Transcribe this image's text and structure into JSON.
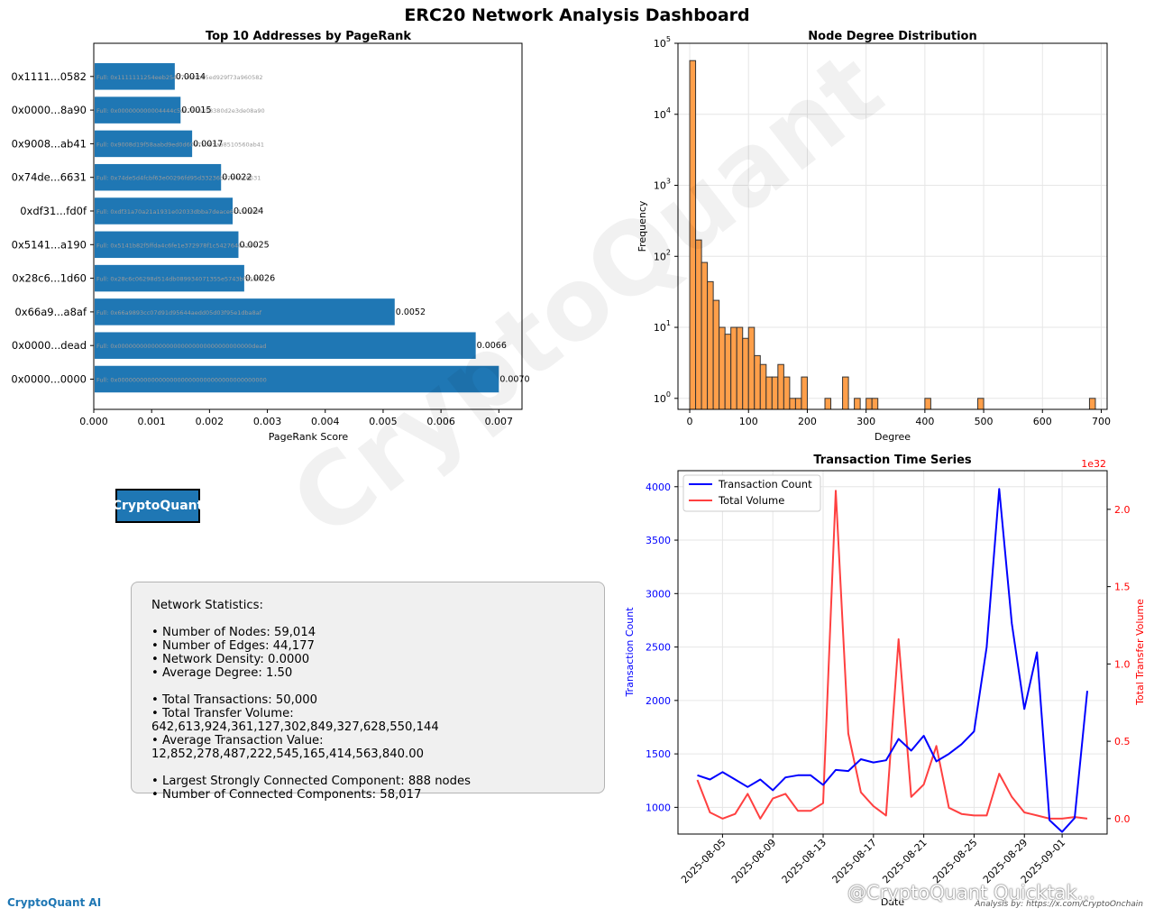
{
  "title": "ERC20 Network Analysis Dashboard",
  "watermark": "CryptoQuant",
  "brand_box": "CryptoQuant",
  "footer_brand": "CryptoQuant AI",
  "footer_credit": "Analysis by: https://x.com/CryptoOnchain",
  "footer_mark": "@CryptoQuant Quicktak...",
  "stats": {
    "heading": "Network Statistics:",
    "lines": [
      "• Number of Nodes: 59,014",
      "• Number of Edges: 44,177",
      "• Network Density: 0.0000",
      "• Average Degree: 1.50",
      "",
      "• Total Transactions: 50,000",
      "• Total Transfer Volume: 642,613,924,361,127,302,849,327,628,550,144",
      "• Average Transaction Value: 12,852,278,487,222,545,165,414,563,840.00",
      "",
      "• Largest Strongly Connected Component: 888 nodes",
      "• Number of Connected Components: 58,017"
    ]
  },
  "chart_data": [
    {
      "type": "bar",
      "orientation": "horizontal",
      "title": "Top 10 Addresses by PageRank",
      "xlabel": "PageRank Score",
      "ylabel": "",
      "xlim": [
        0,
        0.0074
      ],
      "xticks": [
        "0.000",
        "0.001",
        "0.002",
        "0.003",
        "0.004",
        "0.005",
        "0.006",
        "0.007"
      ],
      "bar_color": "#1f77b4",
      "categories": [
        "0x0000...0000",
        "0x0000...dead",
        "0x66a9...a8af",
        "0x28c6...1d60",
        "0x5141...a190",
        "0xdf31...fd0f",
        "0x74de...6631",
        "0x9008...ab41",
        "0x0000...8a90",
        "0x1111...0582"
      ],
      "values": [
        0.007,
        0.0066,
        0.0052,
        0.0026,
        0.0025,
        0.0024,
        0.0022,
        0.0017,
        0.0015,
        0.0014
      ],
      "data_labels": [
        "0.0070",
        "0.0066",
        "0.0052",
        "0.0026",
        "0.0025",
        "0.0024",
        "0.0022",
        "0.0017",
        "0.0015",
        "0.0014"
      ],
      "full_addresses": [
        "Full: 0x0000000000000000000000000000000000000000",
        "Full: 0x000000000000000000000000000000000000dead",
        "Full: 0x66a9893cc07d91d95644aedd05d03f95e1dba8af",
        "Full: 0x28c6c06298d514db089934071355e5743bf21d60",
        "Full: 0x5141b82f5ffda4c6fe1e372978f1c5427640a190",
        "Full: 0xdf31a70a21a1931e02033dbba7deace6c45cfd0f",
        "Full: 0x74de5d4fcbf63e00296fd95d33236b9794016631",
        "Full: 0x9008d19f58aabd9ed0d60971565aa8510560ab41",
        "Full: 0x000000000004444c5dc75cb358380d2e3de08a90",
        "Full: 0x1111111254eeb25477b68fb85ed929f73a960582"
      ]
    },
    {
      "type": "histogram",
      "title": "Node Degree Distribution",
      "xlabel": "Degree",
      "ylabel": "Frequency",
      "yscale": "log",
      "ylim": [
        0.7,
        100000
      ],
      "xlim": [
        -20,
        710
      ],
      "xticks": [
        0,
        100,
        200,
        300,
        400,
        500,
        600,
        700
      ],
      "bar_color": "#ff9f4a",
      "bin_width": 10,
      "bin_starts": [
        0,
        10,
        20,
        30,
        40,
        50,
        60,
        70,
        80,
        90,
        100,
        110,
        120,
        130,
        140,
        150,
        160,
        170,
        180,
        190,
        230,
        260,
        280,
        300,
        310,
        400,
        490,
        680
      ],
      "counts": [
        57000,
        170,
        82,
        44,
        24,
        10,
        8,
        10,
        10,
        7,
        10,
        4,
        3,
        2,
        2,
        3,
        2,
        1,
        1,
        2,
        1,
        2,
        1,
        1,
        1,
        1,
        1,
        1
      ]
    },
    {
      "type": "line",
      "title": "Transaction Time Series",
      "xlabel": "Date",
      "ylabel": "Transaction Count",
      "y2label": "Total Transfer Volume",
      "y2_multiplier": "1e32",
      "x_start": "2025-08-03",
      "ylim": [
        750,
        4150
      ],
      "y2lim": [
        -0.1,
        2.25
      ],
      "yticks": [
        1000,
        1500,
        2000,
        2500,
        3000,
        3500,
        4000
      ],
      "y2ticks": [
        "0.0",
        "0.5",
        "1.0",
        "1.5",
        "2.0"
      ],
      "xticks": [
        "2025-08-05",
        "2025-08-09",
        "2025-08-13",
        "2025-08-17",
        "2025-08-21",
        "2025-08-25",
        "2025-08-29",
        "2025-09-01"
      ],
      "legend_position": "top-left",
      "series": [
        {
          "name": "Transaction Count",
          "color": "#0000ff",
          "axis": "left",
          "values": [
            1300,
            1260,
            1330,
            1260,
            1190,
            1260,
            1160,
            1280,
            1300,
            1300,
            1210,
            1350,
            1340,
            1450,
            1420,
            1440,
            1640,
            1530,
            1670,
            1430,
            1500,
            1590,
            1710,
            2500,
            3980,
            2720,
            1920,
            2450,
            880,
            770,
            900,
            2090
          ]
        },
        {
          "name": "Total Volume",
          "color": "#ff4040",
          "axis": "right",
          "values": [
            0.25,
            0.04,
            0.0,
            0.03,
            0.16,
            0.0,
            0.13,
            0.16,
            0.05,
            0.05,
            0.1,
            2.12,
            0.55,
            0.17,
            0.08,
            0.02,
            1.16,
            0.14,
            0.22,
            0.47,
            0.07,
            0.03,
            0.02,
            0.02,
            0.29,
            0.14,
            0.04,
            0.02,
            0.0,
            0.0,
            0.01,
            0.0
          ]
        }
      ]
    }
  ]
}
